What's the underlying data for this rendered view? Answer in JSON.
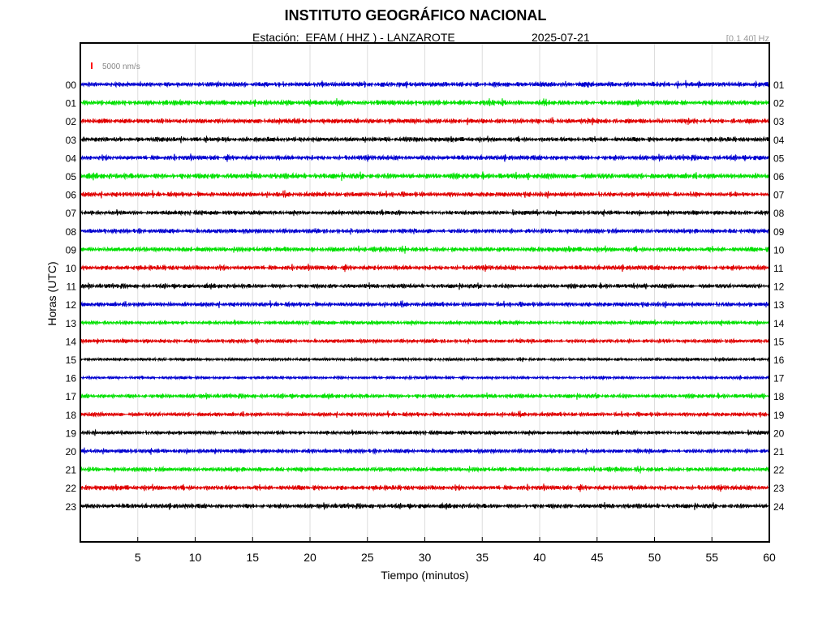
{
  "header": {
    "title": "INSTITUTO GEOGRÁFICO NACIONAL",
    "station": "Estación:  EFAM ( HHZ ) - LANZAROTE",
    "date": "2025-07-21",
    "filter": "[0.1 40] Hz"
  },
  "chart_data": {
    "type": "line",
    "title": "INSTITUTO GEOGRÁFICO NACIONAL",
    "xlabel": "Tiempo (minutos)",
    "ylabel": "Horas (UTC)",
    "xlim": [
      0,
      60
    ],
    "x_ticks": [
      5,
      10,
      15,
      20,
      25,
      30,
      35,
      40,
      45,
      50,
      55,
      60
    ],
    "grid": true,
    "scale_label": "5000 nm/s",
    "scale_color": "#ff0000",
    "left_hours": [
      "00",
      "01",
      "02",
      "03",
      "04",
      "05",
      "06",
      "07",
      "08",
      "09",
      "10",
      "11",
      "12",
      "13",
      "14",
      "15",
      "16",
      "17",
      "18",
      "19",
      "20",
      "21",
      "22",
      "23"
    ],
    "right_hours": [
      "01",
      "02",
      "03",
      "04",
      "05",
      "06",
      "07",
      "08",
      "09",
      "10",
      "11",
      "12",
      "13",
      "14",
      "15",
      "16",
      "17",
      "18",
      "19",
      "20",
      "21",
      "22",
      "23",
      "24"
    ],
    "trace_colors": [
      "#0000d0",
      "#00e000",
      "#e00000",
      "#000000"
    ],
    "relative_amplitude": [
      3.0,
      3.2,
      3.0,
      2.8,
      3.0,
      3.4,
      3.0,
      2.6,
      2.8,
      3.0,
      3.0,
      2.6,
      2.8,
      2.4,
      2.4,
      1.8,
      1.8,
      2.6,
      2.6,
      2.4,
      2.6,
      2.8,
      3.0,
      2.8
    ]
  }
}
